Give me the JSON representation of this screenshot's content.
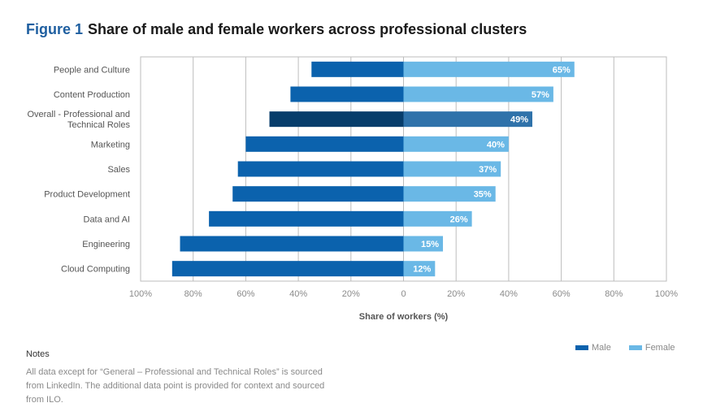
{
  "header": {
    "figure_label": "Figure 1",
    "title": "Share of male and female workers across professional clusters"
  },
  "chart_data": {
    "type": "bar",
    "orientation": "horizontal-diverging",
    "title": "Share of male and female workers across professional clusters",
    "xlabel": "Share of workers (%)",
    "ylabel": "",
    "xlim": [
      -100,
      100
    ],
    "x_ticks": [
      "100%",
      "80%",
      "60%",
      "40%",
      "20%",
      "0",
      "20%",
      "40%",
      "60%",
      "80%",
      "100%"
    ],
    "grid": true,
    "legend_position": "bottom-right",
    "categories": [
      "People and Culture",
      "Content Production",
      "Overall - Professional and Technical Roles",
      "Marketing",
      "Sales",
      "Product Development",
      "Data and AI",
      "Engineering",
      "Cloud Computing"
    ],
    "series": [
      {
        "name": "Male",
        "color": "#0b62ad",
        "highlight_color": "#073d6b",
        "values": [
          35,
          43,
          51,
          60,
          63,
          65,
          74,
          85,
          88
        ]
      },
      {
        "name": "Female",
        "color": "#6ab8e6",
        "highlight_color": "#2f72aa",
        "values": [
          65,
          57,
          49,
          40,
          37,
          35,
          26,
          15,
          12
        ],
        "labels": [
          "65%",
          "57%",
          "49%",
          "40%",
          "37%",
          "35%",
          "26%",
          "15%",
          "12%"
        ]
      }
    ],
    "highlight_category": "Overall - Professional and Technical Roles"
  },
  "notes": {
    "title": "Notes",
    "text": "All data except for “General – Professional and Technical Roles” is sourced from LinkedIn. The additional data point is provided for context and sourced from ILO."
  }
}
